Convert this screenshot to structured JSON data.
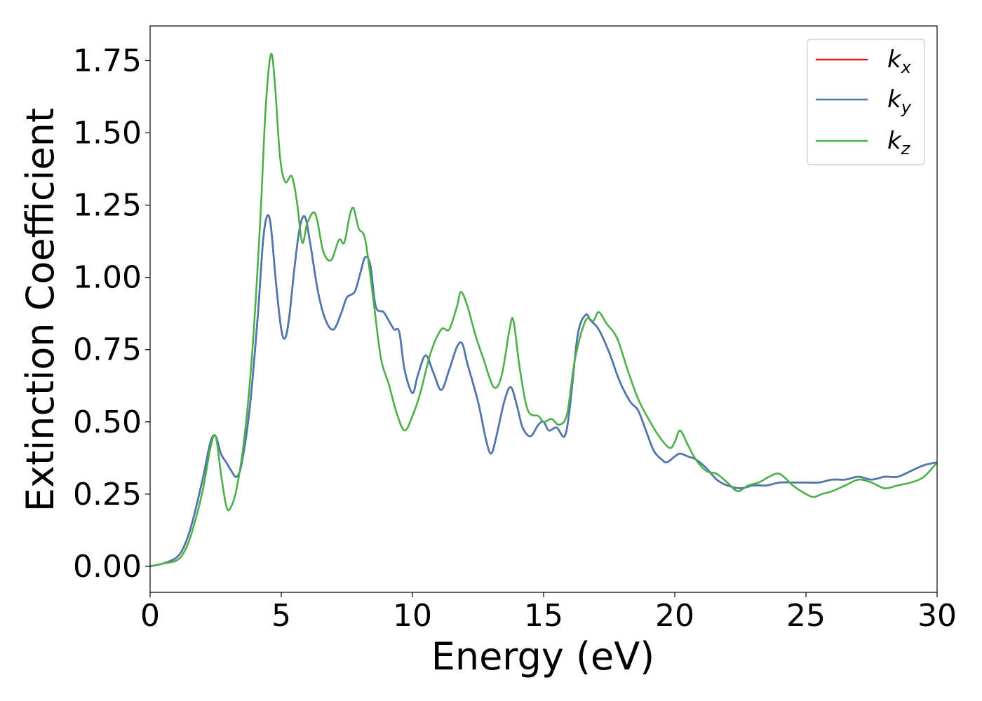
{
  "chart_data": {
    "type": "line",
    "title": "",
    "xlabel": "Energy (eV)",
    "ylabel": "Extinction Coefficient",
    "xlim": [
      0,
      30
    ],
    "ylim": [
      -0.09,
      1.87
    ],
    "xticks": [
      0,
      5,
      10,
      15,
      20,
      25,
      30
    ],
    "xtick_labels": [
      "0",
      "5",
      "10",
      "15",
      "20",
      "25",
      "30"
    ],
    "yticks": [
      0.0,
      0.25,
      0.5,
      0.75,
      1.0,
      1.25,
      1.5,
      1.75
    ],
    "ytick_labels": [
      "0.00",
      "0.25",
      "0.50",
      "0.75",
      "1.00",
      "1.25",
      "1.50",
      "1.75"
    ],
    "grid": false,
    "legend_position": "top-right",
    "series": [
      {
        "name": "k_x",
        "label_base": "k",
        "label_sub": "x",
        "color": "#e41a1c",
        "x": [
          0,
          0.5,
          1.0,
          1.3,
          1.6,
          2.0,
          2.3,
          2.5,
          2.7,
          2.9,
          3.1,
          3.3,
          3.5,
          3.8,
          4.1,
          4.3,
          4.45,
          4.6,
          4.8,
          5.0,
          5.15,
          5.3,
          5.5,
          5.7,
          5.9,
          6.1,
          6.4,
          6.7,
          7.0,
          7.3,
          7.5,
          7.8,
          8.0,
          8.2,
          8.4,
          8.6,
          8.9,
          9.1,
          9.3,
          9.5,
          9.7,
          10.0,
          10.2,
          10.5,
          10.8,
          11.1,
          11.4,
          11.7,
          11.9,
          12.1,
          12.5,
          12.8,
          13.0,
          13.2,
          13.5,
          13.75,
          14.0,
          14.2,
          14.5,
          14.8,
          15.0,
          15.2,
          15.5,
          15.8,
          16.0,
          16.3,
          16.6,
          16.8,
          17.1,
          17.5,
          17.9,
          18.3,
          18.6,
          18.9,
          19.2,
          19.5,
          19.7,
          20.0,
          20.2,
          20.5,
          20.8,
          21.2,
          21.6,
          22.0,
          22.5,
          23.0,
          23.5,
          24.0,
          24.5,
          25.0,
          25.5,
          26.0,
          26.5,
          27.0,
          27.5,
          28.0,
          28.5,
          29.0,
          29.5,
          30.0
        ],
        "y": [
          0,
          0.01,
          0.03,
          0.07,
          0.15,
          0.3,
          0.43,
          0.45,
          0.39,
          0.36,
          0.33,
          0.31,
          0.36,
          0.55,
          0.86,
          1.12,
          1.21,
          1.18,
          0.98,
          0.82,
          0.79,
          0.86,
          1.03,
          1.17,
          1.21,
          1.12,
          0.95,
          0.85,
          0.82,
          0.88,
          0.93,
          0.95,
          1.01,
          1.07,
          1.04,
          0.9,
          0.88,
          0.85,
          0.82,
          0.81,
          0.68,
          0.6,
          0.66,
          0.73,
          0.67,
          0.61,
          0.68,
          0.76,
          0.77,
          0.7,
          0.57,
          0.44,
          0.39,
          0.45,
          0.57,
          0.62,
          0.55,
          0.48,
          0.45,
          0.49,
          0.5,
          0.47,
          0.48,
          0.45,
          0.55,
          0.8,
          0.87,
          0.85,
          0.82,
          0.74,
          0.64,
          0.57,
          0.54,
          0.47,
          0.4,
          0.37,
          0.36,
          0.38,
          0.39,
          0.38,
          0.37,
          0.34,
          0.3,
          0.28,
          0.27,
          0.28,
          0.28,
          0.29,
          0.29,
          0.29,
          0.29,
          0.3,
          0.3,
          0.31,
          0.3,
          0.31,
          0.31,
          0.33,
          0.35,
          0.36
        ]
      },
      {
        "name": "k_y",
        "label_base": "k",
        "label_sub": "y",
        "color": "#4a78b0",
        "x": [
          0,
          0.5,
          1.0,
          1.3,
          1.6,
          2.0,
          2.3,
          2.5,
          2.7,
          2.9,
          3.1,
          3.3,
          3.5,
          3.8,
          4.1,
          4.3,
          4.45,
          4.6,
          4.8,
          5.0,
          5.15,
          5.3,
          5.5,
          5.7,
          5.9,
          6.1,
          6.4,
          6.7,
          7.0,
          7.3,
          7.5,
          7.8,
          8.0,
          8.2,
          8.4,
          8.6,
          8.9,
          9.1,
          9.3,
          9.5,
          9.7,
          10.0,
          10.2,
          10.5,
          10.8,
          11.1,
          11.4,
          11.7,
          11.9,
          12.1,
          12.5,
          12.8,
          13.0,
          13.2,
          13.5,
          13.75,
          14.0,
          14.2,
          14.5,
          14.8,
          15.0,
          15.2,
          15.5,
          15.8,
          16.0,
          16.3,
          16.6,
          16.8,
          17.1,
          17.5,
          17.9,
          18.3,
          18.6,
          18.9,
          19.2,
          19.5,
          19.7,
          20.0,
          20.2,
          20.5,
          20.8,
          21.2,
          21.6,
          22.0,
          22.5,
          23.0,
          23.5,
          24.0,
          24.5,
          25.0,
          25.5,
          26.0,
          26.5,
          27.0,
          27.5,
          28.0,
          28.5,
          29.0,
          29.5,
          30.0
        ],
        "y": [
          0,
          0.01,
          0.03,
          0.07,
          0.15,
          0.3,
          0.43,
          0.45,
          0.39,
          0.36,
          0.33,
          0.31,
          0.36,
          0.55,
          0.86,
          1.12,
          1.21,
          1.18,
          0.98,
          0.82,
          0.79,
          0.86,
          1.03,
          1.17,
          1.21,
          1.12,
          0.95,
          0.85,
          0.82,
          0.88,
          0.93,
          0.95,
          1.01,
          1.07,
          1.04,
          0.9,
          0.88,
          0.85,
          0.82,
          0.81,
          0.68,
          0.6,
          0.66,
          0.73,
          0.67,
          0.61,
          0.68,
          0.76,
          0.77,
          0.7,
          0.57,
          0.44,
          0.39,
          0.45,
          0.57,
          0.62,
          0.55,
          0.48,
          0.45,
          0.49,
          0.5,
          0.47,
          0.48,
          0.45,
          0.55,
          0.8,
          0.87,
          0.85,
          0.82,
          0.74,
          0.64,
          0.57,
          0.54,
          0.47,
          0.4,
          0.37,
          0.36,
          0.38,
          0.39,
          0.38,
          0.37,
          0.34,
          0.3,
          0.28,
          0.27,
          0.28,
          0.28,
          0.29,
          0.29,
          0.29,
          0.29,
          0.3,
          0.3,
          0.31,
          0.3,
          0.31,
          0.31,
          0.33,
          0.35,
          0.36
        ]
      },
      {
        "name": "k_z",
        "label_base": "k",
        "label_sub": "z",
        "color": "#4daf4a",
        "x": [
          0,
          0.5,
          1.0,
          1.3,
          1.6,
          2.0,
          2.3,
          2.5,
          2.7,
          2.9,
          3.05,
          3.3,
          3.6,
          3.9,
          4.2,
          4.4,
          4.6,
          4.75,
          4.95,
          5.15,
          5.4,
          5.6,
          5.8,
          6.0,
          6.3,
          6.6,
          6.9,
          7.2,
          7.4,
          7.6,
          7.75,
          7.95,
          8.2,
          8.5,
          8.8,
          9.1,
          9.4,
          9.7,
          10.0,
          10.3,
          10.7,
          11.1,
          11.4,
          11.7,
          11.85,
          12.1,
          12.4,
          12.7,
          13.1,
          13.4,
          13.7,
          13.85,
          14.1,
          14.4,
          14.8,
          15.0,
          15.3,
          15.6,
          15.9,
          16.2,
          16.6,
          16.9,
          17.1,
          17.4,
          17.8,
          18.2,
          18.6,
          19.0,
          19.4,
          19.8,
          20.0,
          20.2,
          20.5,
          20.8,
          21.2,
          21.6,
          22.0,
          22.4,
          22.8,
          23.2,
          23.6,
          24.0,
          24.5,
          25.0,
          25.3,
          25.6,
          26.0,
          26.5,
          27.0,
          27.5,
          28.0,
          28.5,
          29.0,
          29.5,
          30.0
        ],
        "y": [
          0,
          0.01,
          0.02,
          0.05,
          0.12,
          0.26,
          0.41,
          0.45,
          0.32,
          0.21,
          0.2,
          0.27,
          0.45,
          0.75,
          1.2,
          1.58,
          1.77,
          1.68,
          1.42,
          1.33,
          1.35,
          1.26,
          1.12,
          1.19,
          1.22,
          1.09,
          1.06,
          1.13,
          1.12,
          1.21,
          1.24,
          1.17,
          1.13,
          0.93,
          0.72,
          0.63,
          0.53,
          0.47,
          0.52,
          0.6,
          0.74,
          0.82,
          0.82,
          0.9,
          0.95,
          0.9,
          0.8,
          0.72,
          0.62,
          0.66,
          0.82,
          0.85,
          0.68,
          0.54,
          0.52,
          0.5,
          0.51,
          0.49,
          0.53,
          0.72,
          0.85,
          0.85,
          0.88,
          0.84,
          0.79,
          0.68,
          0.58,
          0.51,
          0.45,
          0.41,
          0.43,
          0.47,
          0.42,
          0.37,
          0.33,
          0.32,
          0.29,
          0.26,
          0.28,
          0.29,
          0.31,
          0.32,
          0.28,
          0.25,
          0.24,
          0.25,
          0.26,
          0.28,
          0.3,
          0.29,
          0.27,
          0.28,
          0.29,
          0.31,
          0.36
        ]
      }
    ]
  }
}
